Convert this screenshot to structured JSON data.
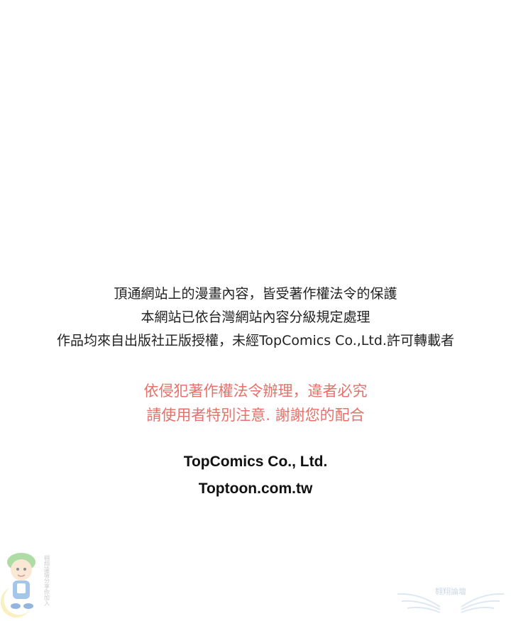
{
  "notice": {
    "lines": [
      "頂通網站上的漫畫內容，皆受著作權法令的保護",
      "本網站已依台灣網站內容分級規定處理",
      "作品均來自出版社正版授權，未經TopComics Co.,Ltd.許可轉載者"
    ]
  },
  "warning": {
    "lines": [
      "依侵犯著作權法令辦理，違者必究",
      "請使用者特別注意. 謝謝您的配合"
    ],
    "color": "#e8706a"
  },
  "brand": {
    "company": "TopComics Co., Ltd.",
    "website": "Toptoon.com.tw"
  },
  "watermarks": {
    "left": {
      "icon": "mascot-boy-icon",
      "text": "翱翔論壇分享你加入"
    },
    "right": {
      "icon": "winged-logo-icon",
      "text": "翱翔論壇"
    }
  }
}
